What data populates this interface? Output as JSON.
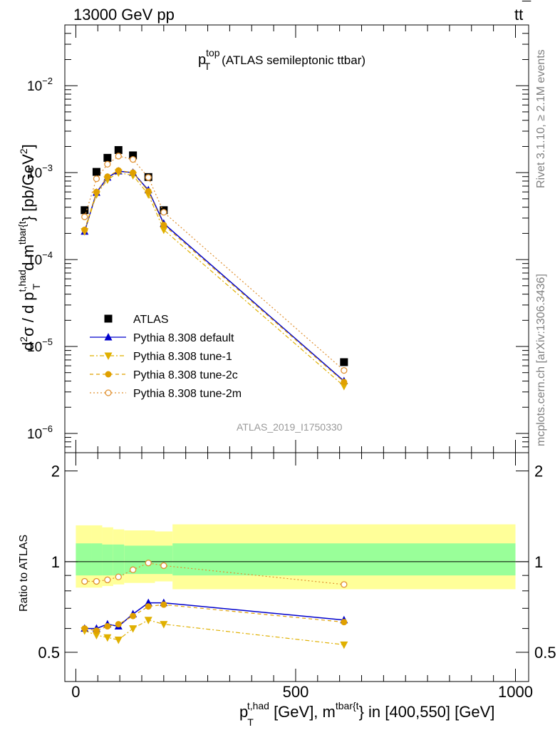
{
  "header": {
    "left": "13000 GeV pp",
    "right_main": "tt",
    "right_bar": "¯"
  },
  "side_labels": {
    "rivet": "Rivet 3.1.10, ≥ 2.1M events",
    "mcplots": "mcplots.cern.ch [arXiv:1306.3436]"
  },
  "plot_title": {
    "main": "p",
    "sup": "top",
    "sub": "T",
    "rest": "(ATLAS semileptonic ttbar)"
  },
  "analysis_id": "ATLAS_2019_I1750330",
  "axes": {
    "y_top": {
      "label_parts": {
        "d2": "d",
        "sup2": "2",
        "sigma": "σ / d p",
        "sup_had": "t,had",
        "sub_T": "T",
        "dm": "d m",
        "sup_tbar": "tbar{t",
        "close": "} [pb/GeV",
        "sup_gev2": "2",
        "end": "]"
      },
      "ticks": [
        {
          "label_base": "10",
          "label_exp": "−2",
          "value": 0.01
        },
        {
          "label_base": "10",
          "label_exp": "−3",
          "value": 0.001
        },
        {
          "label_base": "10",
          "label_exp": "−4",
          "value": 0.0001
        },
        {
          "label_base": "10",
          "label_exp": "−5",
          "value": 1e-05
        },
        {
          "label_base": "10",
          "label_exp": "−6",
          "value": 1e-06
        }
      ],
      "scale": "log",
      "range": [
        6e-07,
        0.05
      ]
    },
    "y_ratio": {
      "label": "Ratio to ATLAS",
      "ticks": [
        {
          "label": "2",
          "value": 2
        },
        {
          "label": "1",
          "value": 1
        },
        {
          "label": "0.5",
          "value": 0.5
        }
      ],
      "scale": "log",
      "range": [
        0.4,
        2.3
      ]
    },
    "x": {
      "label_parts": {
        "p": "p",
        "sub_T": "T",
        "sup_had": "t,had",
        "mid": " [GeV], m",
        "sup_tbar": "tbar{t",
        "end": "} in [400,550] [GeV]"
      },
      "ticks": [
        {
          "label": "0",
          "value": 0
        },
        {
          "label": "500",
          "value": 500
        },
        {
          "label": "1000",
          "value": 1000
        }
      ],
      "range": [
        -25,
        1030
      ]
    }
  },
  "legend": {
    "position": "left-middle",
    "entries": [
      {
        "key": "atlas",
        "label": "ATLAS"
      },
      {
        "key": "default",
        "label": "Pythia 8.308 default"
      },
      {
        "key": "tune1",
        "label": "Pythia 8.308 tune-1"
      },
      {
        "key": "tune2c",
        "label": "Pythia 8.308 tune-2c"
      },
      {
        "key": "tune2m",
        "label": "Pythia 8.308 tune-2m"
      }
    ]
  },
  "colors": {
    "atlas": "#000000",
    "default": "#0000cc",
    "tune1": "#e0b000",
    "tune2c": "#e0a000",
    "tune2m": "#e09030",
    "band_inner": "#99ff99",
    "band_outer": "#ffff99",
    "analysis_id": "#999999",
    "side_text": "#808080"
  },
  "chart_data": {
    "type": "scatter",
    "x": [
      20,
      47,
      72,
      97,
      130,
      165,
      200,
      610
    ],
    "main": {
      "series": [
        {
          "key": "atlas",
          "name": "ATLAS",
          "style": "marker-square",
          "values": [
            0.00037,
            0.00102,
            0.00148,
            0.00182,
            0.00158,
            0.00089,
            0.00037,
            6.6e-06
          ]
        },
        {
          "key": "default",
          "name": "Pythia 8.308 default",
          "style": "solid-triangle-up",
          "values": [
            0.00021,
            0.00059,
            0.00088,
            0.00104,
            0.001,
            0.00063,
            0.00026,
            4e-06
          ]
        },
        {
          "key": "tune1",
          "name": "Pythia 8.308 tune-1",
          "style": "dashdot-triangle-down",
          "values": [
            0.00021,
            0.00056,
            0.00083,
            0.001,
            0.00093,
            0.00056,
            0.00022,
            3.5e-06
          ]
        },
        {
          "key": "tune2c",
          "name": "Pythia 8.308 tune-2c",
          "style": "dashed-circle",
          "values": [
            0.00022,
            0.0006,
            0.0009,
            0.00106,
            0.001,
            0.00061,
            0.00025,
            3.9e-06
          ]
        },
        {
          "key": "tune2m",
          "name": "Pythia 8.308 tune-2m",
          "style": "dotted-open-circle",
          "values": [
            0.00031,
            0.00085,
            0.00125,
            0.00155,
            0.00142,
            0.00088,
            0.00035,
            5.3e-06
          ]
        }
      ]
    },
    "ratio": {
      "series": [
        {
          "key": "default",
          "values": [
            0.6,
            0.6,
            0.62,
            0.61,
            0.67,
            0.73,
            0.73,
            0.64
          ]
        },
        {
          "key": "tune1",
          "values": [
            0.59,
            0.57,
            0.56,
            0.55,
            0.6,
            0.64,
            0.62,
            0.53
          ]
        },
        {
          "key": "tune2c",
          "values": [
            0.6,
            0.59,
            0.61,
            0.62,
            0.66,
            0.71,
            0.72,
            0.63
          ]
        },
        {
          "key": "tune2m",
          "values": [
            0.86,
            0.86,
            0.87,
            0.89,
            0.94,
            0.99,
            0.97,
            0.84
          ]
        }
      ],
      "bands": {
        "edges": [
          0,
          35,
          60,
          85,
          110,
          150,
          180,
          220,
          1000
        ],
        "inner_lo": [
          0.9,
          0.9,
          0.9,
          0.9,
          0.91,
          0.91,
          0.91,
          0.9
        ],
        "inner_hi": [
          1.15,
          1.15,
          1.14,
          1.14,
          1.13,
          1.13,
          1.13,
          1.15
        ],
        "outer_lo": [
          0.82,
          0.82,
          0.83,
          0.84,
          0.85,
          0.85,
          0.86,
          0.81
        ],
        "outer_hi": [
          1.32,
          1.32,
          1.3,
          1.28,
          1.27,
          1.27,
          1.26,
          1.33
        ]
      }
    }
  }
}
